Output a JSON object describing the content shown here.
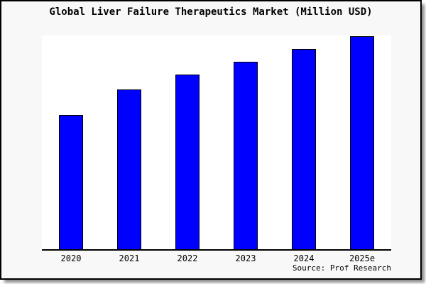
{
  "header": {
    "title": "Global Liver Failure Therapeutics Market (Million USD)"
  },
  "footer": {
    "source_label": "Source: Prof Research"
  },
  "colors": {
    "bar_fill": "#0000ff",
    "bar_border": "#000000",
    "card_background": "#f8f8f8",
    "plot_background": "#ffffff",
    "frame_border": "#000000",
    "text": "#000000"
  },
  "chart_data": {
    "type": "bar",
    "title": "Global Liver Failure Therapeutics Market (Million USD)",
    "categories": [
      "2020",
      "2021",
      "2022",
      "2023",
      "2024",
      "2025e"
    ],
    "values": [
      63,
      75,
      82,
      88,
      94,
      100
    ],
    "value_note": "No y-axis scale or value labels are shown in the image; values are relative estimates from bar heights with 2025e = 100",
    "xlabel": "",
    "ylabel": "",
    "ylim": [
      0,
      100
    ],
    "grid": false,
    "legend": false,
    "bar_color": "#0000ff",
    "bar_border_color": "#000000"
  }
}
